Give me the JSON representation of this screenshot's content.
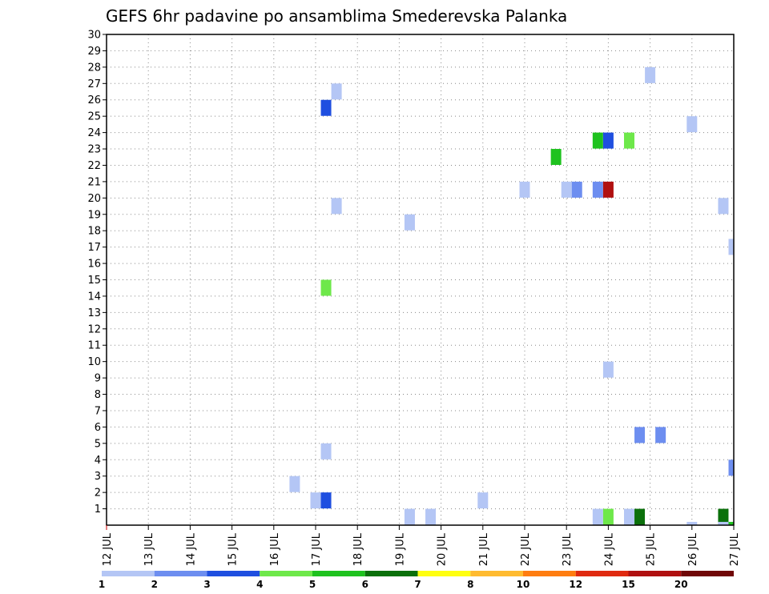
{
  "chart_data": {
    "type": "heatmap",
    "title": "GEFS 6hr padavine po ansamblima Smederevska Palanka",
    "xlabel": "",
    "ylabel": "",
    "x_tick_labels": [
      "12 JUL",
      "13 JUL",
      "14 JUL",
      "15 JUL",
      "16 JUL",
      "17 JUL",
      "18 JUL",
      "19 JUL",
      "20 JUL",
      "21 JUL",
      "22 JUL",
      "23 JUL",
      "24 JUL",
      "25 JUL",
      "26 JUL",
      "27 JUL"
    ],
    "x_range_days": [
      12,
      27
    ],
    "y_tick_labels": [
      "1",
      "2",
      "3",
      "4",
      "5",
      "6",
      "7",
      "8",
      "9",
      "10",
      "11",
      "12",
      "13",
      "14",
      "15",
      "16",
      "17",
      "18",
      "19",
      "20",
      "21",
      "22",
      "23",
      "24",
      "25",
      "26",
      "27",
      "28",
      "29",
      "30"
    ],
    "y_range": [
      0,
      30
    ],
    "grid": true,
    "colorbar": {
      "labels": [
        "1",
        "2",
        "3",
        "4",
        "5",
        "6",
        "7",
        "8",
        "10",
        "12",
        "15",
        "20"
      ],
      "colors": [
        "#b4c6f5",
        "#6d8ef0",
        "#1f4fe0",
        "#6ee84a",
        "#1fc21f",
        "#0b700b",
        "#ffff10",
        "#ffbb30",
        "#ff7d10",
        "#e02a10",
        "#b01010",
        "#700808"
      ]
    },
    "cells": [
      {
        "day": 17.25,
        "member": 1.5,
        "level": 2
      },
      {
        "day": 17.25,
        "member": 4.5,
        "level": 0
      },
      {
        "day": 17.25,
        "member": 25.5,
        "level": 2
      },
      {
        "day": 17.25,
        "member": 14.5,
        "level": 3
      },
      {
        "day": 17.5,
        "member": 26.5,
        "level": 0
      },
      {
        "day": 17.5,
        "member": 19.5,
        "level": 0
      },
      {
        "day": 16.5,
        "member": 2.5,
        "level": 0
      },
      {
        "day": 17.0,
        "member": 1.5,
        "level": 0
      },
      {
        "day": 19.25,
        "member": 18.5,
        "level": 0
      },
      {
        "day": 19.25,
        "member": 0.5,
        "level": 0
      },
      {
        "day": 19.75,
        "member": 0.5,
        "level": 0
      },
      {
        "day": 21.0,
        "member": 1.5,
        "level": 0
      },
      {
        "day": 22.0,
        "member": 20.5,
        "level": 0
      },
      {
        "day": 22.75,
        "member": 22.5,
        "level": 4
      },
      {
        "day": 23.0,
        "member": 20.5,
        "level": 0
      },
      {
        "day": 23.25,
        "member": 20.5,
        "level": 1
      },
      {
        "day": 23.75,
        "member": 20.5,
        "level": 1
      },
      {
        "day": 24.0,
        "member": 20.5,
        "level": 10
      },
      {
        "day": 23.75,
        "member": 23.5,
        "level": 4
      },
      {
        "day": 24.0,
        "member": 23.5,
        "level": 2
      },
      {
        "day": 24.5,
        "member": 23.5,
        "level": 3
      },
      {
        "day": 24.0,
        "member": 9.5,
        "level": 0
      },
      {
        "day": 23.75,
        "member": 0.5,
        "level": 0
      },
      {
        "day": 24.0,
        "member": 0.5,
        "level": 3
      },
      {
        "day": 24.5,
        "member": 0.5,
        "level": 0
      },
      {
        "day": 24.75,
        "member": 0.5,
        "level": 5
      },
      {
        "day": 24.75,
        "member": 5.5,
        "level": 1
      },
      {
        "day": 25.25,
        "member": 5.5,
        "level": 1
      },
      {
        "day": 25.0,
        "member": 27.5,
        "level": 0
      },
      {
        "day": 26.0,
        "member": 24.5,
        "level": 0
      },
      {
        "day": 26.75,
        "member": 19.5,
        "level": 0
      },
      {
        "day": 26.0,
        "member": -0.3,
        "level": 0
      },
      {
        "day": 26.75,
        "member": 0.5,
        "level": 5
      },
      {
        "day": 26.75,
        "member": -0.3,
        "level": 0
      },
      {
        "day": 27.0,
        "member": 17.0,
        "level": 0
      },
      {
        "day": 27.0,
        "member": 3.5,
        "level": 1
      },
      {
        "day": 27.0,
        "member": -0.3,
        "level": 4
      }
    ]
  }
}
